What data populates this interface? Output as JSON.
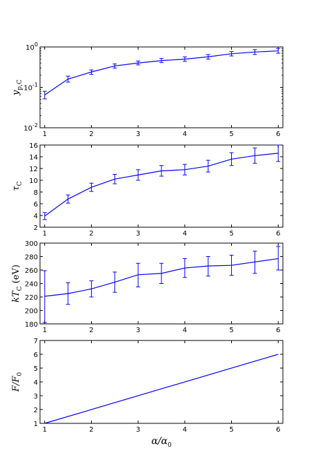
{
  "chart_data": [
    {
      "type": "line",
      "ylabel": "y_{p,C}",
      "yscale": "log",
      "ylim": [
        0.01,
        1
      ],
      "yticks": [
        {
          "value": 0.01,
          "base": "10",
          "exp": "-2"
        },
        {
          "value": 0.1,
          "base": "10",
          "exp": "-1"
        },
        {
          "value": 1,
          "base": "10",
          "exp": "0"
        }
      ],
      "xlim": [
        0.9,
        6.1
      ],
      "xticks": [
        1,
        2,
        3,
        4,
        5,
        6
      ],
      "series": [
        {
          "x": [
            1,
            1.5,
            2,
            2.5,
            3,
            3.5,
            4,
            4.5,
            5,
            5.5,
            6
          ],
          "y": [
            0.065,
            0.16,
            0.24,
            0.34,
            0.4,
            0.46,
            0.5,
            0.57,
            0.68,
            0.75,
            0.8
          ],
          "err_low": [
            0.052,
            0.135,
            0.21,
            0.3,
            0.36,
            0.41,
            0.44,
            0.5,
            0.6,
            0.65,
            0.7
          ],
          "err_high": [
            0.08,
            0.19,
            0.27,
            0.38,
            0.45,
            0.52,
            0.57,
            0.65,
            0.77,
            0.86,
            0.92
          ],
          "color": "#0000ff"
        }
      ]
    },
    {
      "type": "line",
      "ylabel": "τ_C",
      "ylim": [
        2,
        16
      ],
      "yticks": [
        2,
        4,
        6,
        8,
        10,
        12,
        14,
        16
      ],
      "xlim": [
        0.9,
        6.1
      ],
      "xticks": [
        1,
        2,
        3,
        4,
        5,
        6
      ],
      "series": [
        {
          "x": [
            1,
            1.5,
            2,
            2.5,
            3,
            3.5,
            4,
            4.5,
            5,
            5.5,
            6
          ],
          "y": [
            3.9,
            6.8,
            8.8,
            10.2,
            10.9,
            11.6,
            11.8,
            12.4,
            13.6,
            14.2,
            14.6
          ],
          "err": [
            0.6,
            0.7,
            0.7,
            0.8,
            0.9,
            0.9,
            0.9,
            1.0,
            1.1,
            1.3,
            1.4
          ],
          "color": "#0000ff"
        }
      ]
    },
    {
      "type": "line",
      "ylabel": "kT_C (eV)",
      "ylim": [
        180,
        300
      ],
      "yticks": [
        180,
        200,
        220,
        240,
        260,
        280,
        300
      ],
      "xlim": [
        0.9,
        6.1
      ],
      "xticks": [
        1,
        2,
        3,
        4,
        5,
        6
      ],
      "series": [
        {
          "x": [
            1,
            1.5,
            2,
            2.5,
            3,
            3.5,
            4,
            4.5,
            5,
            5.5,
            6
          ],
          "y": [
            221,
            225,
            232,
            242,
            253,
            255,
            263,
            266,
            267,
            272,
            277
          ],
          "err_low": [
            182,
            209,
            220,
            227,
            235,
            240,
            249,
            251,
            252,
            255,
            260
          ],
          "err_high": [
            259,
            241,
            244,
            257,
            270,
            270,
            277,
            280,
            282,
            288,
            295
          ],
          "color": "#0000ff"
        }
      ]
    },
    {
      "type": "line",
      "ylabel": "F/F_0",
      "xlabel": "α/α_0",
      "ylim": [
        1,
        7
      ],
      "yticks": [
        1,
        2,
        3,
        4,
        5,
        6,
        7
      ],
      "xlim": [
        0.9,
        6.1
      ],
      "xticks": [
        1,
        2,
        3,
        4,
        5,
        6
      ],
      "series": [
        {
          "x": [
            1,
            6
          ],
          "y": [
            1,
            6
          ],
          "color": "#0000ff"
        }
      ]
    }
  ]
}
